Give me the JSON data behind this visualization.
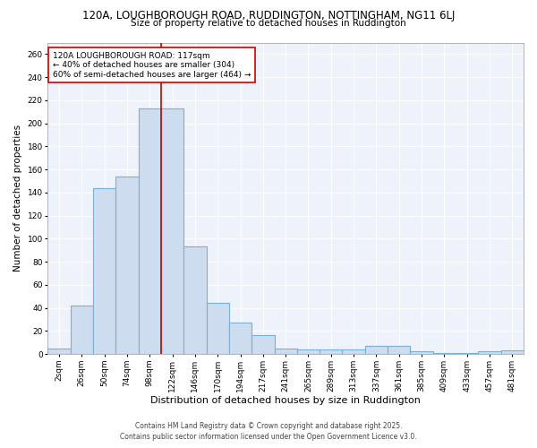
{
  "title_line1": "120A, LOUGHBOROUGH ROAD, RUDDINGTON, NOTTINGHAM, NG11 6LJ",
  "title_line2": "Size of property relative to detached houses in Ruddington",
  "xlabel": "Distribution of detached houses by size in Ruddington",
  "ylabel": "Number of detached properties",
  "categories": [
    "2sqm",
    "26sqm",
    "50sqm",
    "74sqm",
    "98sqm",
    "122sqm",
    "146sqm",
    "170sqm",
    "194sqm",
    "217sqm",
    "241sqm",
    "265sqm",
    "289sqm",
    "313sqm",
    "337sqm",
    "361sqm",
    "385sqm",
    "409sqm",
    "433sqm",
    "457sqm",
    "481sqm"
  ],
  "values": [
    5,
    42,
    144,
    154,
    213,
    213,
    93,
    44,
    27,
    16,
    5,
    4,
    4,
    4,
    7,
    7,
    2,
    1,
    1,
    2,
    3
  ],
  "bar_color": "#cddcee",
  "bar_edge_color": "#7bafd4",
  "bg_color": "#eef2fa",
  "grid_color": "#ffffff",
  "fig_bg_color": "#ffffff",
  "vline_color": "#cc0000",
  "vline_x_idx": 5,
  "annotation_text": "120A LOUGHBOROUGH ROAD: 117sqm\n← 40% of detached houses are smaller (304)\n60% of semi-detached houses are larger (464) →",
  "annotation_box_edge_color": "#cc0000",
  "ylim": [
    0,
    270
  ],
  "yticks": [
    0,
    20,
    40,
    60,
    80,
    100,
    120,
    140,
    160,
    180,
    200,
    220,
    240,
    260
  ],
  "footer_line1": "Contains HM Land Registry data © Crown copyright and database right 2025.",
  "footer_line2": "Contains public sector information licensed under the Open Government Licence v3.0.",
  "title_fontsize": 8.5,
  "subtitle_fontsize": 7.5,
  "axis_label_fontsize": 7.5,
  "tick_fontsize": 6.5,
  "annotation_fontsize": 6.5,
  "footer_fontsize": 5.5
}
